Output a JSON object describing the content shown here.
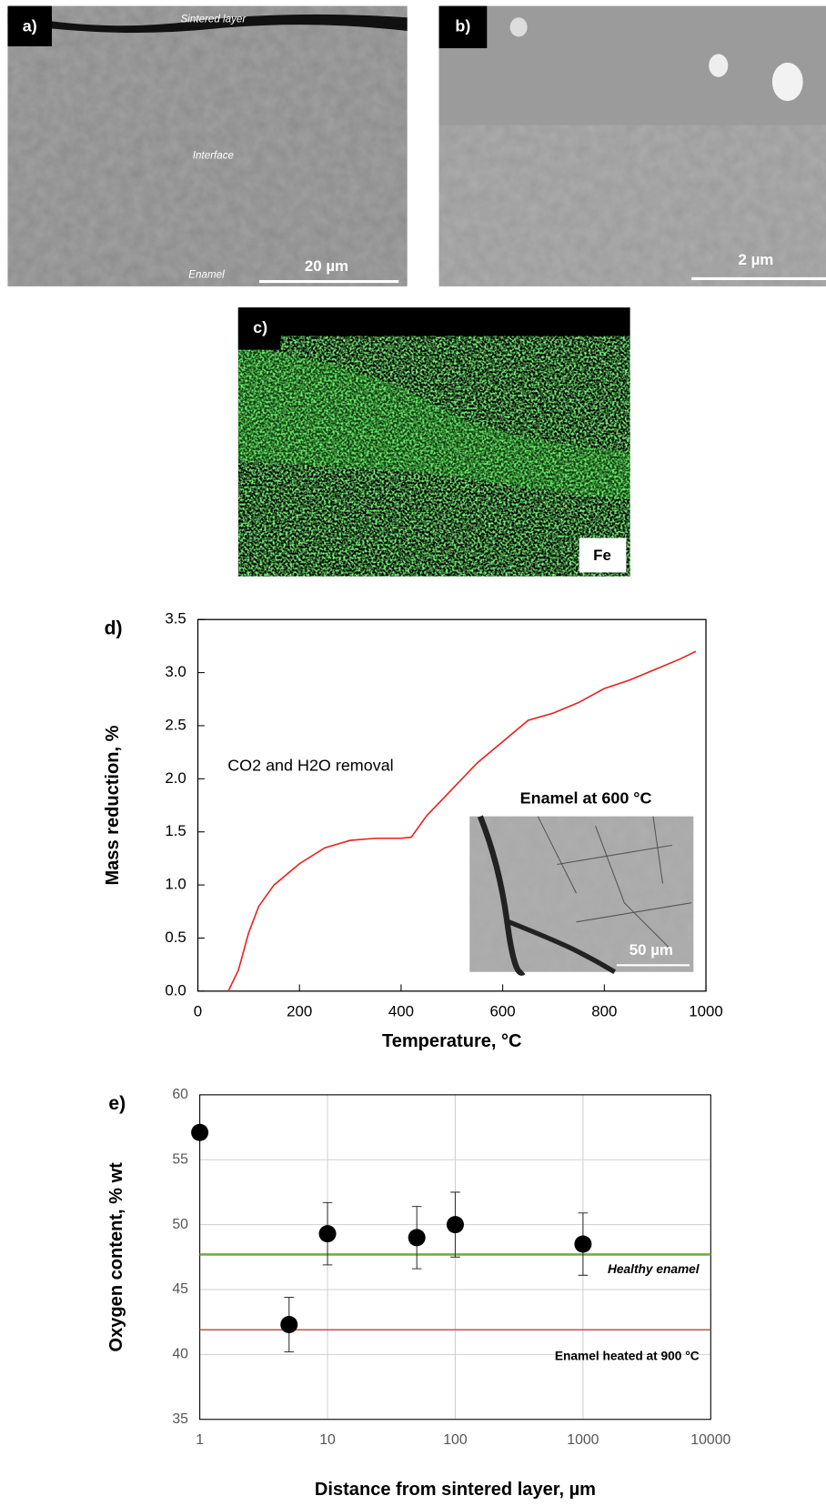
{
  "panels": [
    {
      "label": "a)",
      "texts": [
        "Sintered layer",
        "Interface",
        "Enamel"
      ],
      "scale_bar": "20 µm"
    },
    {
      "label": "b)",
      "scale_bar": "2 µm"
    },
    {
      "label": "c)",
      "element": "Fe"
    }
  ],
  "chart_data": [
    {
      "type": "line",
      "panel_label": "d)",
      "x_label": "Temperature, °C",
      "y_label": "Mass reduction, %",
      "annotation": "CO2 and H2O removal",
      "inset_title": "Enamel at 600 °C",
      "inset_scale_bar": "50 µm",
      "xlim": [
        0,
        1000
      ],
      "xticks": [
        0,
        200,
        400,
        600,
        800,
        1000
      ],
      "ylim": [
        0,
        3.5
      ],
      "yticks": [
        {
          "value": 0,
          "label": "0.0"
        },
        0.5,
        {
          "value": 1,
          "label": "1.0"
        },
        1.5,
        {
          "value": 2,
          "label": "2.0"
        },
        2.5,
        {
          "value": 3,
          "label": "3.0"
        },
        3.5
      ],
      "color": "#e8201a",
      "x": [
        60,
        80,
        100,
        120,
        150,
        200,
        250,
        300,
        350,
        400,
        420,
        450,
        500,
        550,
        600,
        650,
        700,
        750,
        800,
        850,
        900,
        950,
        980
      ],
      "values": [
        0,
        0.2,
        0.55,
        0.8,
        1.0,
        1.2,
        1.35,
        1.42,
        1.44,
        1.44,
        1.45,
        1.65,
        1.9,
        2.15,
        2.35,
        2.55,
        2.62,
        2.72,
        2.85,
        2.93,
        3.03,
        3.13,
        3.2
      ]
    },
    {
      "type": "scatter",
      "panel_label": "e)",
      "x_label": "Distance from sintered layer, µm",
      "y_label": "Oxygen content, % wt",
      "xscale": "log",
      "xlim": [
        1,
        10000
      ],
      "xticks": [
        1,
        10,
        100,
        1000,
        10000
      ],
      "ylim": [
        35,
        60
      ],
      "yticks": [
        35,
        40,
        45,
        50,
        55,
        60
      ],
      "grid": true,
      "color": "#000000",
      "x": [
        1,
        5,
        10,
        50,
        100,
        1000
      ],
      "values": [
        57.1,
        42.3,
        49.3,
        49.0,
        50.0,
        48.5
      ],
      "errors": [
        null,
        2.1,
        2.4,
        2.4,
        2.5,
        2.4
      ],
      "reference_lines": [
        {
          "value": 47.7,
          "label": "Healthy enamel",
          "color": "#70ad47"
        },
        {
          "value": 41.9,
          "label": "Enamel heated at 900 °C",
          "color": "#c0504d"
        }
      ]
    }
  ]
}
